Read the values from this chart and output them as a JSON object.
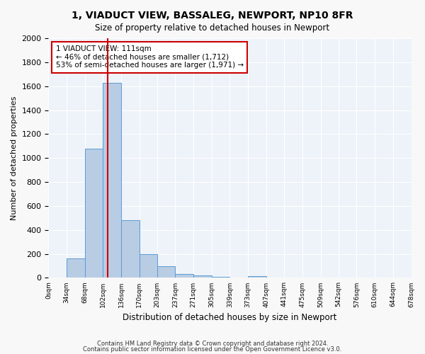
{
  "title": "1, VIADUCT VIEW, BASSALEG, NEWPORT, NP10 8FR",
  "subtitle": "Size of property relative to detached houses in Newport",
  "xlabel": "Distribution of detached houses by size in Newport",
  "ylabel": "Number of detached properties",
  "bar_color": "#b8cce4",
  "bar_edge_color": "#5b9bd5",
  "background_color": "#eef3f9",
  "grid_color": "#ffffff",
  "bin_edges": [
    0,
    34,
    68,
    102,
    136,
    170,
    203,
    237,
    271,
    305,
    339,
    373,
    407,
    441,
    475,
    509,
    542,
    576,
    610,
    644,
    678
  ],
  "bin_labels": [
    "0sqm",
    "34sqm",
    "68sqm",
    "102sqm",
    "136sqm",
    "170sqm",
    "203sqm",
    "237sqm",
    "271sqm",
    "305sqm",
    "339sqm",
    "373sqm",
    "407sqm",
    "441sqm",
    "475sqm",
    "509sqm",
    "542sqm",
    "576sqm",
    "610sqm",
    "644sqm",
    "678sqm"
  ],
  "bar_heights": [
    0,
    165,
    1080,
    1630,
    480,
    200,
    100,
    35,
    20,
    10,
    0,
    15,
    0,
    0,
    0,
    0,
    0,
    0,
    0,
    0
  ],
  "vline_x": 111,
  "vline_color": "#cc0000",
  "annotation_title": "1 VIADUCT VIEW: 111sqm",
  "annotation_line1": "← 46% of detached houses are smaller (1,712)",
  "annotation_line2": "53% of semi-detached houses are larger (1,971) →",
  "annotation_box_color": "#ffffff",
  "annotation_border_color": "#cc0000",
  "ylim": [
    0,
    2000
  ],
  "yticks": [
    0,
    200,
    400,
    600,
    800,
    1000,
    1200,
    1400,
    1600,
    1800,
    2000
  ],
  "footer1": "Contains HM Land Registry data © Crown copyright and database right 2024.",
  "footer2": "Contains public sector information licensed under the Open Government Licence v3.0."
}
